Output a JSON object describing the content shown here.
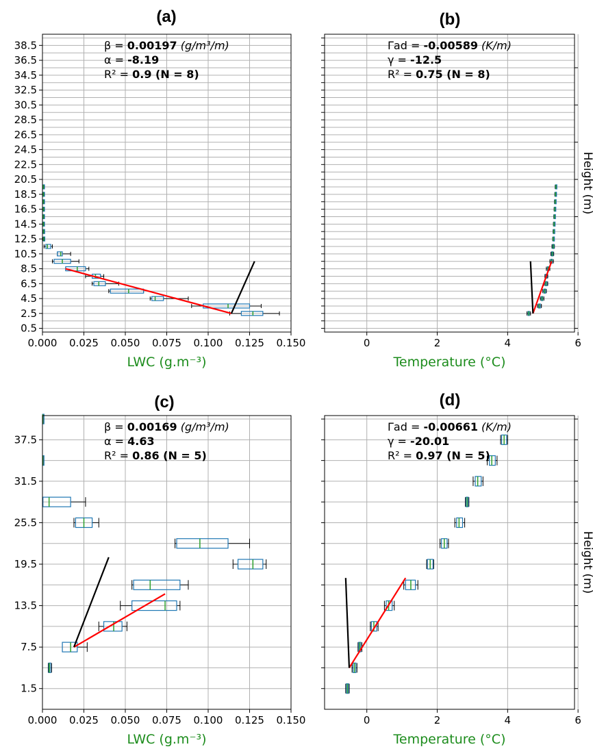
{
  "chart_data": [
    {
      "type": "box",
      "panel_title": "(a)",
      "xlabel": "LWC (g.m⁻³)",
      "xlim": [
        0,
        0.15
      ],
      "xticks": [
        "0.000",
        "0.025",
        "0.050",
        "0.075",
        "0.100",
        "0.125",
        "0.150"
      ],
      "ylim": [
        0,
        40
      ],
      "yticks": [
        "0.5",
        "2.5",
        "4.5",
        "6.5",
        "8.5",
        "10.5",
        "12.5",
        "14.5",
        "16.5",
        "18.5",
        "20.5",
        "22.5",
        "24.5",
        "26.5",
        "28.5",
        "30.5",
        "32.5",
        "34.5",
        "36.5",
        "38.5"
      ],
      "annotation": {
        "line1_prefix": "β = ",
        "line1_value": "0.00197",
        "line1_unit": "(g/m³/m)",
        "line2_prefix": "α = ",
        "line2_value": "-8.19",
        "line3_prefix": "R² = ",
        "line3_value": "0.9 (N = 8)"
      },
      "boxes": [
        {
          "y": 2.5,
          "whislo": 0.113,
          "q1": 0.12,
          "med": 0.127,
          "q3": 0.133,
          "whishi": 0.143
        },
        {
          "y": 3.5,
          "whislo": 0.09,
          "q1": 0.097,
          "med": 0.112,
          "q3": 0.125,
          "whishi": 0.132
        },
        {
          "y": 4.5,
          "whislo": 0.065,
          "q1": 0.066,
          "med": 0.068,
          "q3": 0.073,
          "whishi": 0.088
        },
        {
          "y": 5.5,
          "whislo": 0.04,
          "q1": 0.041,
          "med": 0.052,
          "q3": 0.061,
          "whishi": 0.061
        },
        {
          "y": 6.5,
          "whislo": 0.03,
          "q1": 0.031,
          "med": 0.034,
          "q3": 0.038,
          "whishi": 0.046
        },
        {
          "y": 7.5,
          "whislo": 0.026,
          "q1": 0.03,
          "med": 0.032,
          "q3": 0.035,
          "whishi": 0.037
        },
        {
          "y": 8.5,
          "whislo": 0.014,
          "q1": 0.014,
          "med": 0.021,
          "q3": 0.026,
          "whishi": 0.028
        },
        {
          "y": 9.5,
          "whislo": 0.006,
          "q1": 0.007,
          "med": 0.012,
          "q3": 0.017,
          "whishi": 0.022
        },
        {
          "y": 10.5,
          "whislo": 0.009,
          "q1": 0.009,
          "med": 0.011,
          "q3": 0.012,
          "whishi": 0.017
        },
        {
          "y": 11.5,
          "whislo": 0.001,
          "q1": 0.002,
          "med": 0.003,
          "q3": 0.005,
          "whishi": 0.006
        },
        {
          "y": 12.5,
          "whislo": 0.0003,
          "q1": 0.0006,
          "med": 0.0008,
          "q3": 0.001,
          "whishi": 0.0012
        },
        {
          "y": 13.5,
          "whislo": 0.0002,
          "q1": 0.0005,
          "med": 0.0007,
          "q3": 0.0009,
          "whishi": 0.0011
        },
        {
          "y": 14.5,
          "whislo": 0.0002,
          "q1": 0.0004,
          "med": 0.0006,
          "q3": 0.0008,
          "whishi": 0.001
        },
        {
          "y": 15.5,
          "whislo": 0.0002,
          "q1": 0.0004,
          "med": 0.0006,
          "q3": 0.0008,
          "whishi": 0.001
        },
        {
          "y": 16.5,
          "whislo": 0.0002,
          "q1": 0.0004,
          "med": 0.0006,
          "q3": 0.0008,
          "whishi": 0.001
        },
        {
          "y": 17.5,
          "whislo": 0.0002,
          "q1": 0.0004,
          "med": 0.0006,
          "q3": 0.0008,
          "whishi": 0.001
        },
        {
          "y": 18.5,
          "whislo": 0.0002,
          "q1": 0.0004,
          "med": 0.0006,
          "q3": 0.0008,
          "whishi": 0.001
        },
        {
          "y": 19.5,
          "whislo": 0.0002,
          "q1": 0.0004,
          "med": 0.0006,
          "q3": 0.0008,
          "whishi": 0.001
        }
      ],
      "lines": [
        {
          "color": "#ff0000",
          "x": [
            0.014,
            0.114
          ],
          "y": [
            8.5,
            2.5
          ]
        },
        {
          "color": "#000000",
          "x": [
            0.114,
            0.128
          ],
          "y": [
            2.5,
            9.5
          ]
        }
      ]
    },
    {
      "type": "box",
      "panel_title": "(b)",
      "xlabel": "Temperature (°C)",
      "ylabel": "Height (m)",
      "xlim": [
        -1.2,
        5.9
      ],
      "xticks": [
        "0",
        "2",
        "4",
        "6"
      ],
      "xtick_values": [
        0,
        2,
        4,
        6
      ],
      "ylim": [
        0,
        40
      ],
      "annotation": {
        "line1_prefix": "Γad = ",
        "line1_value": "-0.00589",
        "line1_unit": "(K/m)",
        "line2_prefix": "γ = ",
        "line2_value": "-12.5",
        "line3_prefix": "R² = ",
        "line3_value": "0.75 (N = 8)"
      },
      "boxes": [
        {
          "y": 2.5,
          "whislo": 4.55,
          "q1": 4.58,
          "med": 4.6,
          "q3": 4.62,
          "whishi": 4.65
        },
        {
          "y": 3.5,
          "whislo": 4.85,
          "q1": 4.88,
          "med": 4.9,
          "q3": 4.93,
          "whishi": 4.96
        },
        {
          "y": 4.5,
          "whislo": 4.93,
          "q1": 4.96,
          "med": 4.98,
          "q3": 5.0,
          "whishi": 5.03
        },
        {
          "y": 5.5,
          "whislo": 5.0,
          "q1": 5.03,
          "med": 5.05,
          "q3": 5.08,
          "whishi": 5.1
        },
        {
          "y": 6.5,
          "whislo": 5.04,
          "q1": 5.07,
          "med": 5.09,
          "q3": 5.12,
          "whishi": 5.14
        },
        {
          "y": 7.5,
          "whislo": 5.06,
          "q1": 5.08,
          "med": 5.1,
          "q3": 5.12,
          "whishi": 5.14
        },
        {
          "y": 8.5,
          "whislo": 5.1,
          "q1": 5.13,
          "med": 5.15,
          "q3": 5.17,
          "whishi": 5.2
        },
        {
          "y": 9.5,
          "whislo": 5.2,
          "q1": 5.23,
          "med": 5.25,
          "q3": 5.27,
          "whishi": 5.3
        },
        {
          "y": 10.5,
          "whislo": 5.23,
          "q1": 5.25,
          "med": 5.27,
          "q3": 5.29,
          "whishi": 5.31
        },
        {
          "y": 11.5,
          "whislo": 5.26,
          "q1": 5.28,
          "med": 5.3,
          "q3": 5.31,
          "whishi": 5.33
        },
        {
          "y": 12.5,
          "whislo": 5.28,
          "q1": 5.29,
          "med": 5.3,
          "q3": 5.31,
          "whishi": 5.32
        },
        {
          "y": 13.5,
          "whislo": 5.29,
          "q1": 5.3,
          "med": 5.31,
          "q3": 5.32,
          "whishi": 5.33
        },
        {
          "y": 14.5,
          "whislo": 5.3,
          "q1": 5.31,
          "med": 5.32,
          "q3": 5.33,
          "whishi": 5.34
        },
        {
          "y": 15.5,
          "whislo": 5.31,
          "q1": 5.32,
          "med": 5.33,
          "q3": 5.34,
          "whishi": 5.35
        },
        {
          "y": 16.5,
          "whislo": 5.32,
          "q1": 5.33,
          "med": 5.34,
          "q3": 5.35,
          "whishi": 5.36
        },
        {
          "y": 17.5,
          "whislo": 5.33,
          "q1": 5.34,
          "med": 5.35,
          "q3": 5.36,
          "whishi": 5.37
        },
        {
          "y": 18.5,
          "whislo": 5.34,
          "q1": 5.35,
          "med": 5.36,
          "q3": 5.37,
          "whishi": 5.38
        },
        {
          "y": 19.5,
          "whislo": 5.35,
          "q1": 5.36,
          "med": 5.37,
          "q3": 5.38,
          "whishi": 5.39
        }
      ],
      "lines": [
        {
          "color": "#ff0000",
          "x": [
            4.72,
            5.25
          ],
          "y": [
            2.5,
            9.5
          ]
        },
        {
          "color": "#000000",
          "x": [
            4.72,
            4.65
          ],
          "y": [
            2.5,
            9.5
          ]
        }
      ]
    },
    {
      "type": "box",
      "panel_title": "(c)",
      "xlabel": "LWC (g.m⁻³)",
      "xlim": [
        0,
        0.15
      ],
      "xticks": [
        "0.000",
        "0.025",
        "0.050",
        "0.075",
        "0.100",
        "0.125",
        "0.150"
      ],
      "ylim": [
        -1.5,
        41
      ],
      "yticks": [
        "1.5",
        "7.5",
        "13.5",
        "19.5",
        "25.5",
        "31.5",
        "37.5"
      ],
      "annotation": {
        "line1_prefix": "β = ",
        "line1_value": "0.00169",
        "line1_unit": "(g/m³/m)",
        "line2_prefix": "α = ",
        "line2_value": "4.63",
        "line3_prefix": "R² = ",
        "line3_value": "0.86 (N = 5)"
      },
      "boxes": [
        {
          "y": 4.5,
          "whislo": 0.0035,
          "q1": 0.0038,
          "med": 0.0042,
          "q3": 0.005,
          "whishi": 0.0055
        },
        {
          "y": 7.5,
          "whislo": 0.012,
          "q1": 0.012,
          "med": 0.017,
          "q3": 0.021,
          "whishi": 0.027
        },
        {
          "y": 10.5,
          "whislo": 0.034,
          "q1": 0.037,
          "med": 0.043,
          "q3": 0.048,
          "whishi": 0.051
        },
        {
          "y": 13.5,
          "whislo": 0.047,
          "q1": 0.054,
          "med": 0.074,
          "q3": 0.081,
          "whishi": 0.083
        },
        {
          "y": 16.5,
          "whislo": 0.054,
          "q1": 0.055,
          "med": 0.065,
          "q3": 0.083,
          "whishi": 0.088
        },
        {
          "y": 19.5,
          "whislo": 0.115,
          "q1": 0.118,
          "med": 0.127,
          "q3": 0.133,
          "whishi": 0.135
        },
        {
          "y": 22.5,
          "whislo": 0.08,
          "q1": 0.081,
          "med": 0.095,
          "q3": 0.112,
          "whishi": 0.125
        },
        {
          "y": 25.5,
          "whislo": 0.019,
          "q1": 0.02,
          "med": 0.025,
          "q3": 0.03,
          "whishi": 0.034
        },
        {
          "y": 28.5,
          "whislo": 0.0,
          "q1": 0.0003,
          "med": 0.004,
          "q3": 0.017,
          "whishi": 0.026
        },
        {
          "y": 34.5,
          "whislo": 0.0,
          "q1": 0.0001,
          "med": 0.0002,
          "q3": 0.0003,
          "whishi": 0.0004
        },
        {
          "y": 40.5,
          "whislo": 0.0,
          "q1": 0.0001,
          "med": 0.0002,
          "q3": 0.0003,
          "whishi": 0.0004
        }
      ],
      "lines": [
        {
          "color": "#ff0000",
          "x": [
            0.019,
            0.074
          ],
          "y": [
            7.5,
            15.2
          ]
        },
        {
          "color": "#000000",
          "x": [
            0.019,
            0.04
          ],
          "y": [
            7.5,
            20.5
          ]
        }
      ]
    },
    {
      "type": "box",
      "panel_title": "(d)",
      "xlabel": "Temperature (°C)",
      "ylabel": "Height (m)",
      "xlim": [
        -1.2,
        5.9
      ],
      "xticks": [
        "0",
        "2",
        "4",
        "6"
      ],
      "xtick_values": [
        0,
        2,
        4,
        6
      ],
      "ylim": [
        -1.5,
        41
      ],
      "annotation": {
        "line1_prefix": "Γad = ",
        "line1_value": "-0.00661",
        "line1_unit": "(K/m)",
        "line2_prefix": "γ = ",
        "line2_value": "-20.01",
        "line3_prefix": "R² = ",
        "line3_value": "0.97 (N = 5)"
      },
      "boxes": [
        {
          "y": 1.5,
          "whislo": -0.6,
          "q1": -0.58,
          "med": -0.55,
          "q3": -0.52,
          "whishi": -0.5
        },
        {
          "y": 4.5,
          "whislo": -0.42,
          "q1": -0.39,
          "med": -0.35,
          "q3": -0.31,
          "whishi": -0.28
        },
        {
          "y": 7.5,
          "whislo": -0.25,
          "q1": -0.23,
          "med": -0.2,
          "q3": -0.17,
          "whishi": -0.14
        },
        {
          "y": 10.5,
          "whislo": 0.1,
          "q1": 0.13,
          "med": 0.2,
          "q3": 0.28,
          "whishi": 0.32
        },
        {
          "y": 13.5,
          "whislo": 0.5,
          "q1": 0.55,
          "med": 0.62,
          "q3": 0.72,
          "whishi": 0.78
        },
        {
          "y": 16.5,
          "whislo": 1.05,
          "q1": 1.1,
          "med": 1.25,
          "q3": 1.38,
          "whishi": 1.45
        },
        {
          "y": 19.5,
          "whislo": 1.7,
          "q1": 1.72,
          "med": 1.8,
          "q3": 1.88,
          "whishi": 1.9
        },
        {
          "y": 22.5,
          "whislo": 2.08,
          "q1": 2.12,
          "med": 2.2,
          "q3": 2.28,
          "whishi": 2.32
        },
        {
          "y": 25.5,
          "whislo": 2.5,
          "q1": 2.55,
          "med": 2.62,
          "q3": 2.72,
          "whishi": 2.78
        },
        {
          "y": 28.5,
          "whislo": 2.8,
          "q1": 2.82,
          "med": 2.85,
          "q3": 2.88,
          "whishi": 2.9
        },
        {
          "y": 31.5,
          "whislo": 3.02,
          "q1": 3.08,
          "med": 3.15,
          "q3": 3.25,
          "whishi": 3.3
        },
        {
          "y": 34.5,
          "whislo": 3.42,
          "q1": 3.48,
          "med": 3.55,
          "q3": 3.65,
          "whishi": 3.7
        },
        {
          "y": 37.5,
          "whislo": 3.8,
          "q1": 3.83,
          "med": 3.9,
          "q3": 3.97,
          "whishi": 4.0
        }
      ],
      "lines": [
        {
          "color": "#ff0000",
          "x": [
            -0.5,
            1.1
          ],
          "y": [
            4.5,
            17.5
          ]
        },
        {
          "color": "#000000",
          "x": [
            -0.5,
            -0.6
          ],
          "y": [
            4.5,
            17.5
          ]
        }
      ]
    }
  ]
}
